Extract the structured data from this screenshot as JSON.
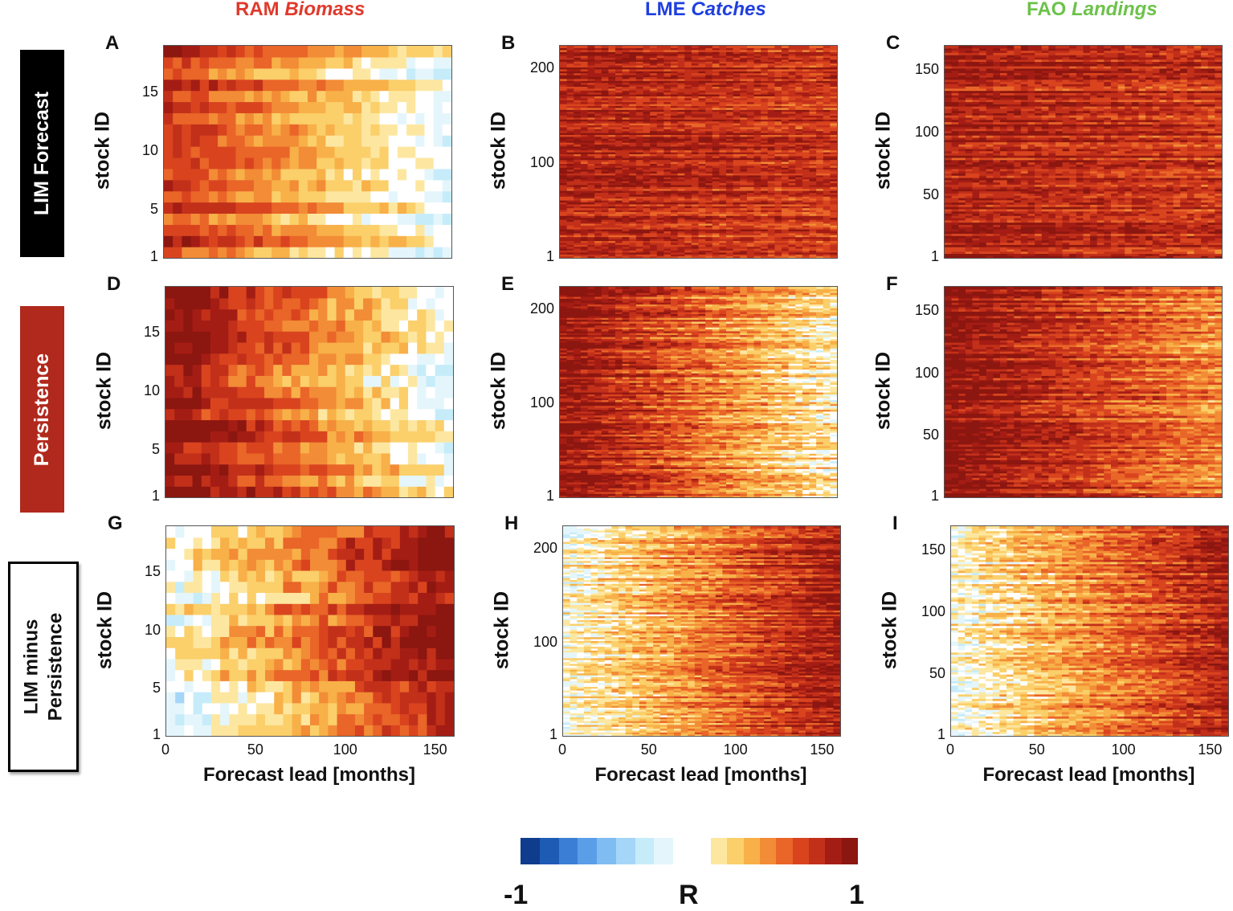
{
  "column_titles": [
    {
      "prefix": "RAM ",
      "italic": "Biomass",
      "color": "#e0392b"
    },
    {
      "prefix": "LME ",
      "italic": "Catches",
      "color": "#1f3fe0"
    },
    {
      "prefix": "FAO ",
      "italic": "Landings",
      "color": "#6cc24a"
    }
  ],
  "row_labels": [
    {
      "line1": "LIM Forecast",
      "line2": ""
    },
    {
      "line1": "Persistence",
      "line2": ""
    },
    {
      "line1": "LIM minus",
      "line2": "Persistence"
    }
  ],
  "axis": {
    "ylabel": "stock ID",
    "xlabel": "Forecast lead [months]"
  },
  "colorbar": {
    "label": "R",
    "min_label": "-1",
    "max_label": "1",
    "negative_colors": [
      "#0f3c8c",
      "#1d5bb5",
      "#3a7fd5",
      "#5a9ee8",
      "#7fbcf2",
      "#a5d6f8",
      "#c6ecfa",
      "#e4f6fc"
    ],
    "positive_colors": [
      "#fde7a0",
      "#fbcf6a",
      "#f8b048",
      "#f28c36",
      "#e96528",
      "#d9441f",
      "#c2301a",
      "#a41d14",
      "#8c1610"
    ]
  },
  "chart_data": [
    {
      "type": "heatmap",
      "panel": "A",
      "source": "RAM Biomass",
      "method": "LIM Forecast",
      "xlim": [
        0,
        160
      ],
      "ylim": [
        1,
        19
      ],
      "xticks": [
        "0",
        "50",
        "100",
        "150"
      ],
      "yticks": [
        "1",
        "5",
        "10",
        "15"
      ],
      "rows": 19,
      "cols": 32,
      "mean_r": 0.72,
      "trend": -0.005,
      "noise": 0.1
    },
    {
      "type": "heatmap",
      "panel": "B",
      "source": "LME Catches",
      "method": "LIM Forecast",
      "xlim": [
        0,
        160
      ],
      "ylim": [
        1,
        225
      ],
      "xticks": [
        "0",
        "50",
        "100",
        "150"
      ],
      "yticks": [
        "1",
        "100",
        "200"
      ],
      "rows": 110,
      "cols": 40,
      "mean_r": 0.82,
      "trend": -0.0008,
      "noise": 0.14
    },
    {
      "type": "heatmap",
      "panel": "C",
      "source": "FAO Landings",
      "method": "LIM Forecast",
      "xlim": [
        0,
        160
      ],
      "ylim": [
        1,
        170
      ],
      "xticks": [
        "0",
        "50",
        "100",
        "150"
      ],
      "yticks": [
        "1",
        "50",
        "100",
        "150"
      ],
      "rows": 95,
      "cols": 40,
      "mean_r": 0.82,
      "trend": -0.0008,
      "noise": 0.14
    },
    {
      "type": "heatmap",
      "panel": "D",
      "source": "RAM Biomass",
      "method": "Persistence",
      "xlim": [
        0,
        160
      ],
      "ylim": [
        1,
        19
      ],
      "xticks": [
        "0",
        "50",
        "100",
        "150"
      ],
      "yticks": [
        "1",
        "5",
        "10",
        "15"
      ],
      "rows": 19,
      "cols": 32,
      "mean_r": 0.95,
      "trend": -0.0065,
      "noise": 0.15
    },
    {
      "type": "heatmap",
      "panel": "E",
      "source": "LME Catches",
      "method": "Persistence",
      "xlim": [
        0,
        160
      ],
      "ylim": [
        1,
        225
      ],
      "xticks": [
        "0",
        "50",
        "100",
        "150"
      ],
      "yticks": [
        "1",
        "100",
        "200"
      ],
      "rows": 110,
      "cols": 40,
      "mean_r": 0.95,
      "trend": -0.0055,
      "noise": 0.16
    },
    {
      "type": "heatmap",
      "panel": "F",
      "source": "FAO Landings",
      "method": "Persistence",
      "xlim": [
        0,
        160
      ],
      "ylim": [
        1,
        170
      ],
      "xticks": [
        "0",
        "50",
        "100",
        "150"
      ],
      "yticks": [
        "1",
        "50",
        "100",
        "150"
      ],
      "rows": 95,
      "cols": 40,
      "mean_r": 0.95,
      "trend": -0.0035,
      "noise": 0.14
    },
    {
      "type": "heatmap",
      "panel": "G",
      "source": "RAM Biomass",
      "method": "LIM minus Persistence",
      "xlim": [
        0,
        160
      ],
      "ylim": [
        1,
        19
      ],
      "xticks": [
        "0",
        "50",
        "100",
        "150"
      ],
      "yticks": [
        "1",
        "5",
        "10",
        "15"
      ],
      "rows": 19,
      "cols": 32,
      "mean_r": -0.05,
      "trend": 0.0062,
      "noise": 0.16
    },
    {
      "type": "heatmap",
      "panel": "H",
      "source": "LME Catches",
      "method": "LIM minus Persistence",
      "xlim": [
        0,
        160
      ],
      "ylim": [
        1,
        225
      ],
      "xticks": [
        "0",
        "50",
        "100",
        "150"
      ],
      "yticks": [
        "1",
        "100",
        "200"
      ],
      "rows": 110,
      "cols": 40,
      "mean_r": 0.0,
      "trend": 0.0055,
      "noise": 0.16
    },
    {
      "type": "heatmap",
      "panel": "I",
      "source": "FAO Landings",
      "method": "LIM minus Persistence",
      "xlim": [
        0,
        160
      ],
      "ylim": [
        1,
        170
      ],
      "xticks": [
        "0",
        "50",
        "100",
        "150"
      ],
      "yticks": [
        "1",
        "50",
        "100",
        "150"
      ],
      "rows": 95,
      "cols": 40,
      "mean_r": 0.0,
      "trend": 0.0052,
      "noise": 0.16
    }
  ]
}
